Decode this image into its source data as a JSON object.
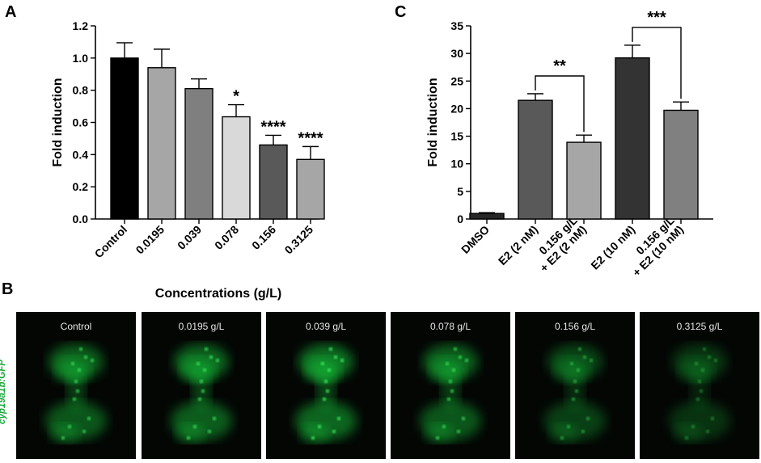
{
  "panels": {
    "a": "A",
    "b": "B",
    "c": "C"
  },
  "chart_data": [
    {
      "id": "A",
      "type": "bar",
      "categories": [
        "Control",
        "0.0195",
        "0.039",
        "0.078",
        "0.156",
        "0.3125"
      ],
      "values": [
        1.0,
        0.94,
        0.81,
        0.635,
        0.46,
        0.37
      ],
      "errors": [
        0.095,
        0.115,
        0.06,
        0.075,
        0.06,
        0.08
      ],
      "significance": [
        "",
        "",
        "",
        "*",
        "****",
        "****"
      ],
      "colors": [
        "#000000",
        "#a6a6a6",
        "#7f7f7f",
        "#d9d9d9",
        "#595959",
        "#a6a6a6"
      ],
      "ylabel": "Fold induction",
      "xlabel": "Concentrations (g/L)",
      "ylim": [
        0,
        1.2
      ],
      "yticks": [
        "0.0",
        "0.2",
        "0.4",
        "0.6",
        "0.8",
        "1.0",
        "1.2"
      ],
      "grid": false
    },
    {
      "id": "C",
      "type": "bar",
      "categories": [
        "DMSO",
        "E2 (2 nM)",
        "0.156 g/L|+ E2 (2 nM)",
        "E2 (10 nM)",
        "0.156 g/L|+ E2 (10 nM)"
      ],
      "values": [
        1.0,
        21.5,
        13.9,
        29.2,
        19.7
      ],
      "errors": [
        0.15,
        1.2,
        1.3,
        2.3,
        1.5
      ],
      "colors": [
        "#262626",
        "#595959",
        "#a6a6a6",
        "#333333",
        "#808080"
      ],
      "ylabel": "Fold induction",
      "ylim": [
        0,
        35
      ],
      "yticks": [
        "0",
        "5",
        "10",
        "15",
        "20",
        "25",
        "30",
        "35"
      ],
      "comparisons": [
        {
          "from": 1,
          "to": 2,
          "label": "**"
        },
        {
          "from": 3,
          "to": 4,
          "label": "***"
        }
      ],
      "grid": false
    }
  ],
  "images": {
    "ylabel": "cyp19a1b:GFP",
    "labels": [
      "Control",
      "0.0195 g/L",
      "0.039 g/L",
      "0.078 g/L",
      "0.156 g/L",
      "0.3125 g/L"
    ],
    "intensity": [
      0.85,
      0.9,
      1.0,
      0.85,
      0.6,
      0.45
    ],
    "glow_color": "#19c43a"
  }
}
